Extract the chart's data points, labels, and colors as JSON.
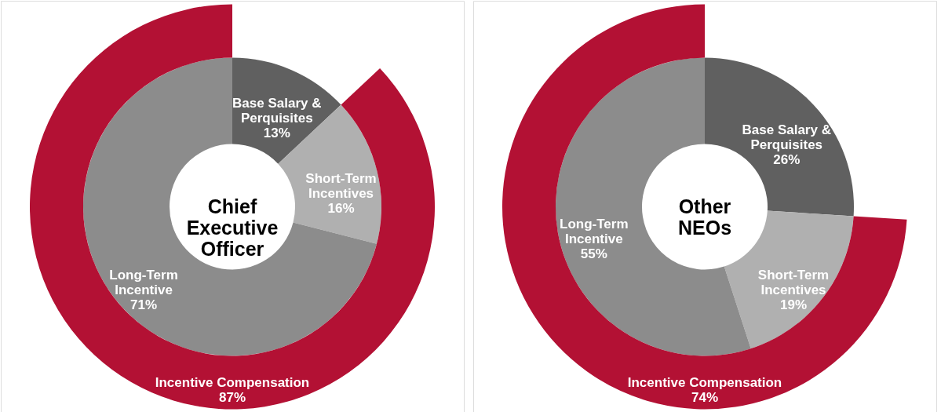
{
  "chart_data": [
    {
      "type": "donut",
      "title": "Chief Executive Officer",
      "categories": [
        "Base Salary & Perquisites",
        "Short-Term Incentives",
        "Long-Term Incentive"
      ],
      "series": [
        {
          "colors": [
            "#606060",
            "#b0b0b0",
            "#8c8c8c"
          ],
          "values": [
            13,
            16,
            71
          ],
          "value_labels": [
            "13%",
            "16%",
            "71%"
          ]
        },
        {
          "name": "Incentive Compensation",
          "color": "#b31134",
          "values": [
            null,
            87,
            null
          ],
          "value_labels": [
            null,
            "87%",
            null
          ]
        }
      ]
    },
    {
      "type": "donut",
      "title": "Other NEOs",
      "categories": [
        "Base Salary & Perquisites",
        "Short-Term Incentives",
        "Long-Term Incentive"
      ],
      "series": [
        {
          "colors": [
            "#606060",
            "#b0b0b0",
            "#8c8c8c"
          ],
          "values": [
            26,
            19,
            55
          ],
          "value_labels": [
            "26%",
            "19%",
            "55%"
          ]
        },
        {
          "name": "Incentive Compensation",
          "color": "#b31134",
          "values": [
            null,
            74,
            null
          ],
          "value_labels": [
            null,
            "74%",
            null
          ]
        }
      ]
    }
  ]
}
